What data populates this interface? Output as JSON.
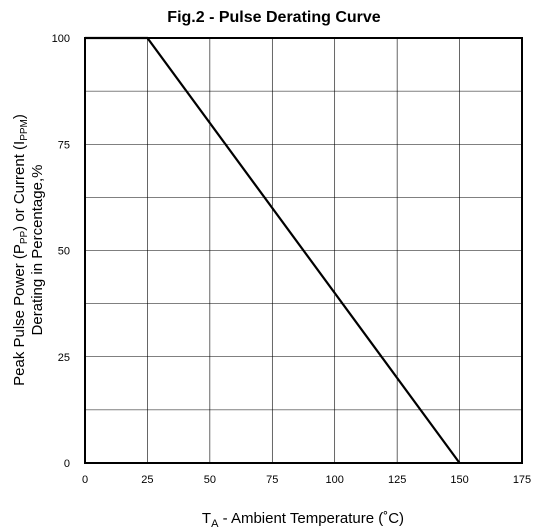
{
  "chart_data": {
    "type": "line",
    "title": "Fig.2 - Pulse Derating Curve",
    "xlabel": {
      "main": "T",
      "sub": "A",
      "rest": " - Ambient Temperature (˚C)"
    },
    "ylabel": {
      "line1": [
        {
          "t": "Peak Pulse Power (P"
        },
        {
          "t": "PP",
          "sub": true
        },
        {
          "t": ") or Current (I"
        },
        {
          "t": "PPM",
          "sub": true
        },
        {
          "t": ")"
        }
      ],
      "line2": "Derating in Percentage,%"
    },
    "xlim": [
      0,
      175
    ],
    "ylim": [
      0,
      100
    ],
    "x_ticks": [
      0,
      25,
      50,
      75,
      100,
      125,
      150,
      175
    ],
    "y_ticks": [
      0,
      25,
      50,
      75,
      100
    ],
    "y_tick_labels": [
      "0",
      "25",
      "50",
      "75",
      "100"
    ],
    "grid": true,
    "line_color": "#000000",
    "series": [
      {
        "x": [
          0,
          25,
          150
        ],
        "y": [
          100,
          100,
          0
        ]
      }
    ]
  }
}
